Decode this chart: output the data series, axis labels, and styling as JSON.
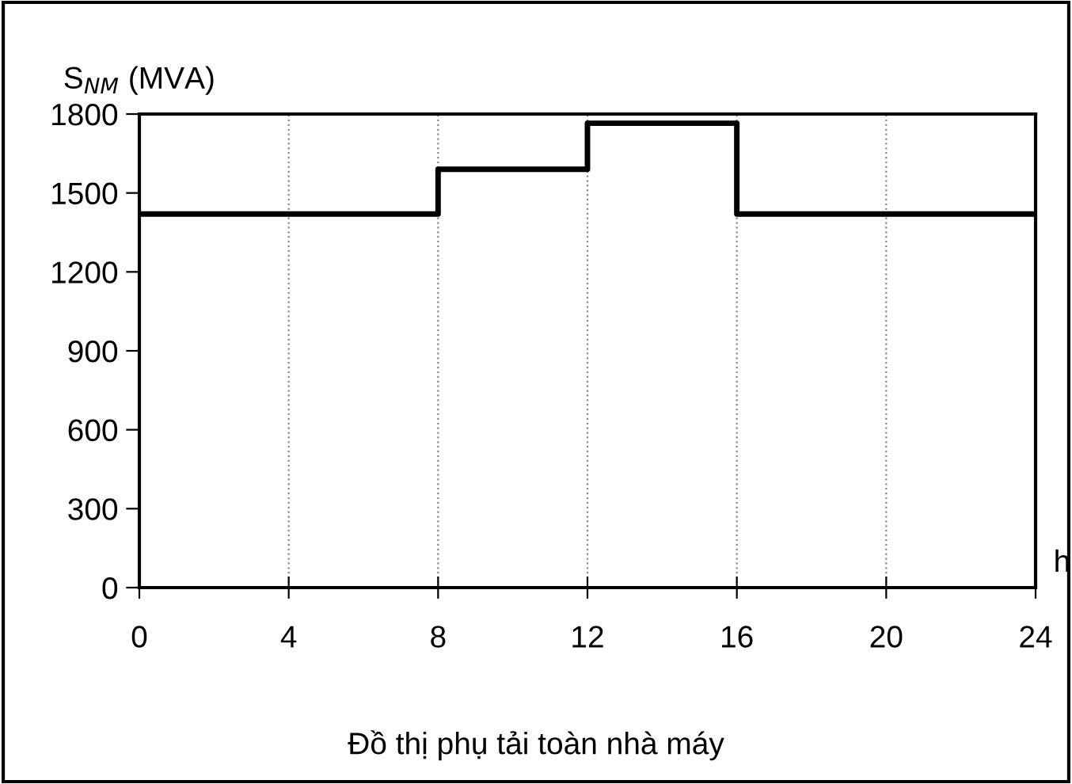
{
  "chart_data": {
    "type": "step",
    "xlabel": "h",
    "ylabel": "S$_{NM}$ (MVA)",
    "annotations": [
      "Đồ thị phụ tải toàn nhà máy"
    ],
    "x": [
      0,
      8,
      12,
      16,
      24
    ],
    "series": [
      {
        "color": "#000000",
        "values": [
          1420,
          1590,
          1765,
          1420,
          1420
        ]
      }
    ],
    "xlim": [
      0,
      24
    ],
    "xticks": [
      0,
      4,
      8,
      12,
      16,
      20,
      24
    ],
    "ylim": [
      0,
      1800
    ],
    "yticks": [
      0,
      300,
      600,
      900,
      1200,
      1500,
      1800
    ],
    "grid": "x",
    "legend": false,
    "marker": "none",
    "line_style": "solid"
  }
}
